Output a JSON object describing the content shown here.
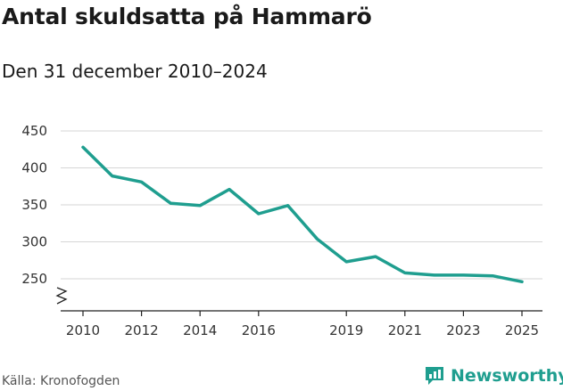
{
  "header": {
    "title": "Antal skuldsatta på Hammarö",
    "subtitle": "Den 31 december 2010–2024"
  },
  "chart_data": {
    "type": "line",
    "title": "Antal skuldsatta på Hammarö",
    "subtitle": "Den 31 december 2010–2024",
    "xlabel": "",
    "ylabel": "",
    "x": [
      2010,
      2011,
      2012,
      2013,
      2014,
      2015,
      2016,
      2017,
      2018,
      2019,
      2020,
      2021,
      2022,
      2023,
      2024,
      2025
    ],
    "series": [
      {
        "name": "Antal skuldsatta",
        "color": "#1f9e8f",
        "values": [
          428,
          389,
          381,
          352,
          349,
          371,
          338,
          349,
          304,
          273,
          280,
          258,
          255,
          255,
          254,
          246
        ]
      }
    ],
    "xticks": [
      "2010",
      "2012",
      "2014",
      "2016",
      "2019",
      "2021",
      "2023",
      "2025"
    ],
    "yticks": [
      250,
      300,
      350,
      400,
      450
    ],
    "ylim": [
      200,
      450
    ],
    "axis_break": true,
    "grid": true
  },
  "footer": {
    "source": "Källa: Kronofogden",
    "brand": "Newsworthy"
  },
  "colors": {
    "line": "#1f9e8f",
    "grid": "#d6d6d6",
    "axis": "#222222",
    "brand": "#1f9e8f"
  }
}
